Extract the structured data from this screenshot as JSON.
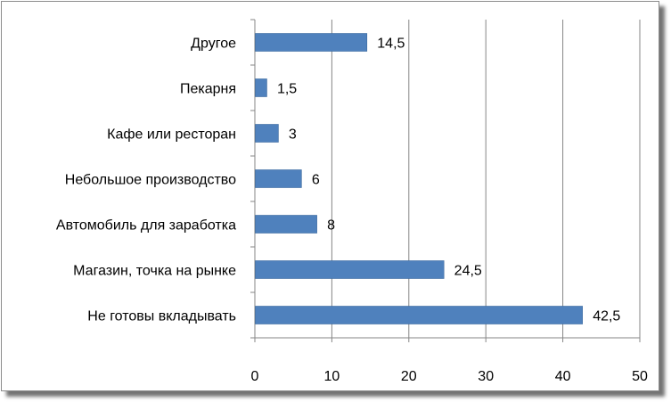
{
  "chart_data": {
    "type": "bar",
    "orientation": "horizontal",
    "categories": [
      "Другое",
      "Пекарня",
      "Кафе или ресторан",
      "Небольшое производство",
      "Автомобиль для заработка",
      "Магазин, точка на рынке",
      "Не готовы вкладывать"
    ],
    "values": [
      14.5,
      1.5,
      3,
      6,
      8,
      24.5,
      42.5
    ],
    "data_labels": [
      "14,5",
      "1,5",
      "3",
      "6",
      "8",
      "24,5",
      "42,5"
    ],
    "xlim": [
      0,
      50
    ],
    "x_ticks": [
      "0",
      "10",
      "20",
      "30",
      "40",
      "50"
    ],
    "x_tick_values": [
      0,
      10,
      20,
      30,
      40,
      50
    ],
    "grid": "vertical",
    "legend": "none",
    "colors": {
      "bar": "#4F81BD",
      "bar_edge": "#3C6A9E",
      "grid": "#868686",
      "axis": "#868686"
    }
  }
}
